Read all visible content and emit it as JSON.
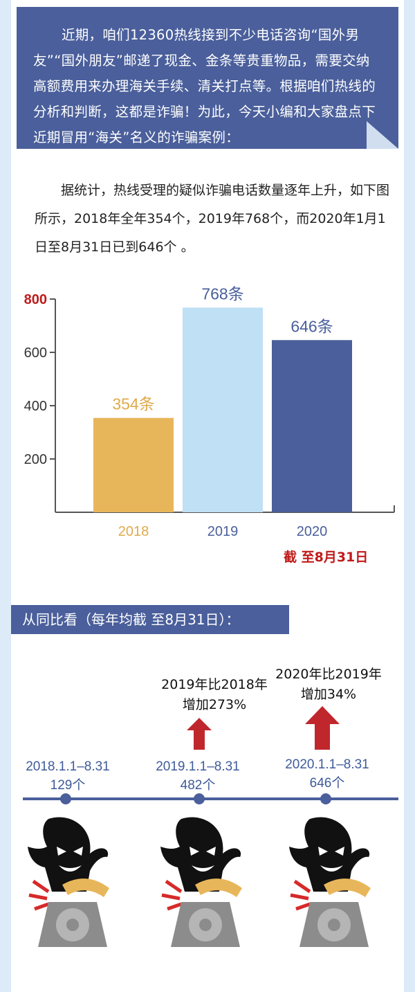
{
  "intro": {
    "text": "近期，咱们12360热线接到不少电话咨询“国外男友”“国外朋友”邮递了现金、金条等贵重物品，需要交纳高额费用来办理海关手续、清关打点等。根据咱们热线的分析和判断，这都是诈骗！为此，今天小编和大家盘点下近期冒用“海关”名义的诈骗案例："
  },
  "stats": {
    "text": "据统计，热线受理的疑似诈骗电话数量逐年上升，如下图所示，2018年全年354个，2019年768个，而2020年1月1日至8月31日已到646个 。"
  },
  "chart_data": {
    "type": "bar",
    "categories": [
      "2018",
      "2019",
      "2020"
    ],
    "values": [
      354,
      768,
      646
    ],
    "data_labels": [
      "354条",
      "768条",
      "646条"
    ],
    "bar_colors": [
      "#e8b65a",
      "#bfe0f5",
      "#4a5f9b"
    ],
    "label_colors": [
      "#e0aa4a",
      "#4a5f9b",
      "#4a5f9b"
    ],
    "yticks": [
      200,
      400,
      600,
      800
    ],
    "ytick_labels": [
      "200",
      "400",
      "600",
      "800"
    ],
    "highlight_tick": "800",
    "ylim": [
      0,
      800
    ],
    "xlabel": "",
    "ylabel": "",
    "title": ""
  },
  "note": "截 至8月31日",
  "section_title": "从同比看（每年均截 至8月31日）：",
  "comparisons": [
    {
      "line1": "2019年比2018年",
      "line2": "增加273%"
    },
    {
      "line1": "2020年比2019年",
      "line2": "增加34%"
    }
  ],
  "timeline": [
    {
      "period": "2018.1.1–8.31",
      "count": "129个"
    },
    {
      "period": "2019.1.1–8.31",
      "count": "482个"
    },
    {
      "period": "2020.1.1–8.31",
      "count": "646个"
    }
  ],
  "colors": {
    "primary": "#4a5f9b",
    "accent_red": "#c01a1a",
    "arrow": "#c0272d"
  }
}
